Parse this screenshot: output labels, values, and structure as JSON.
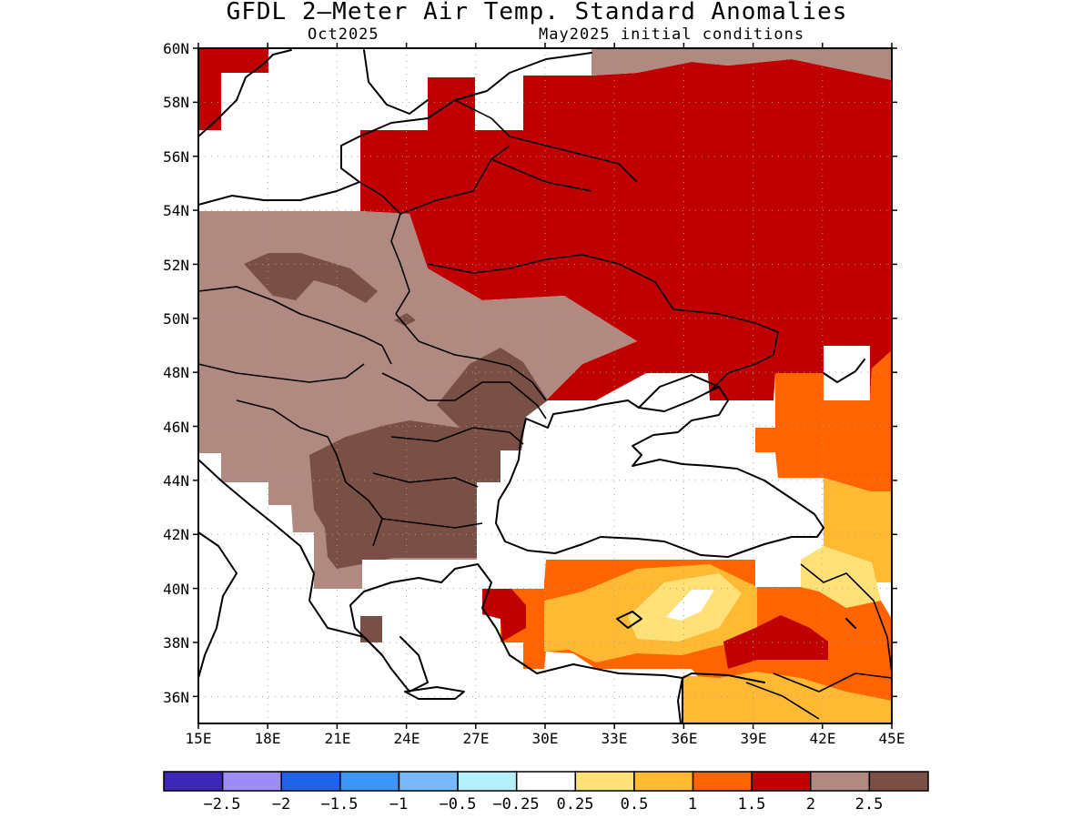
{
  "header": {
    "title": "GFDL 2–Meter Air Temp. Standard Anomalies",
    "subtitle_left": "Oct2025",
    "subtitle_right": "May2025 initial conditions"
  },
  "map": {
    "lon_range": [
      15,
      45
    ],
    "lat_range": [
      35,
      60
    ],
    "lon_ticks": [
      "15E",
      "18E",
      "21E",
      "24E",
      "27E",
      "30E",
      "33E",
      "36E",
      "39E",
      "42E",
      "45E"
    ],
    "lat_ticks": [
      "60N",
      "58N",
      "56N",
      "54N",
      "52N",
      "50N",
      "48N",
      "46N",
      "44N",
      "42N",
      "40N",
      "38N",
      "36N"
    ],
    "gridlines": true,
    "field": "2-meter air temperature standard anomaly",
    "anomaly_regions_summary": {
      "central_eastern_europe_balkans": "2 to 2.5 with cores above 2.5",
      "russia_belarus_eastern_ukraine": "1.5 to 2",
      "caucasus_eastern_turkey": "0.5 to 1.5 with core 1.5 to 2",
      "black_sea_and_greece": "-0.25 to 0.25"
    }
  },
  "colorbar": {
    "colors": [
      "#3c28b4",
      "#9e8cf5",
      "#1f64e6",
      "#3c96f5",
      "#78b9fa",
      "#b4f0fa",
      "#ffffff",
      "#ffe178",
      "#ffb932",
      "#ff6400",
      "#c00000",
      "#b08a80",
      "#7a5046"
    ],
    "labels": [
      "-2.5",
      "-2",
      "-1.5",
      "-1",
      "-0.5",
      "-0.25",
      "0.25",
      "0.5",
      "1",
      "1.5",
      "2",
      "2.5"
    ]
  }
}
